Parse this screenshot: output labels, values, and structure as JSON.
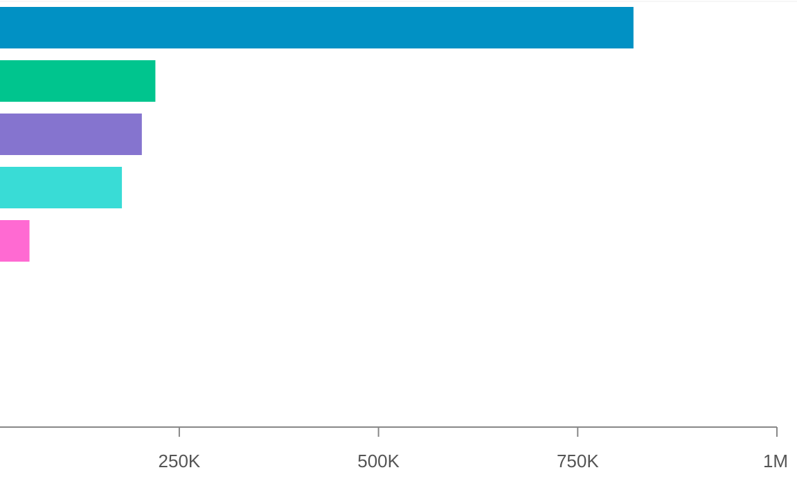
{
  "chart_data": {
    "type": "bar",
    "orientation": "horizontal",
    "title": "",
    "xlabel": "",
    "ylabel": "",
    "xlim": [
      25000,
      1000000
    ],
    "grid": false,
    "x_ticks": [
      {
        "value": 250000,
        "label": "250K"
      },
      {
        "value": 500000,
        "label": "500K"
      },
      {
        "value": 750000,
        "label": "750K"
      },
      {
        "value": 1000000,
        "label": "1M"
      }
    ],
    "series": [
      {
        "values": [
          820000,
          220000,
          203000,
          178000,
          62000
        ]
      }
    ],
    "colors": [
      "#0191c4",
      "#00c58e",
      "#8574cf",
      "#39dcd6",
      "#ff6ad2"
    ]
  }
}
